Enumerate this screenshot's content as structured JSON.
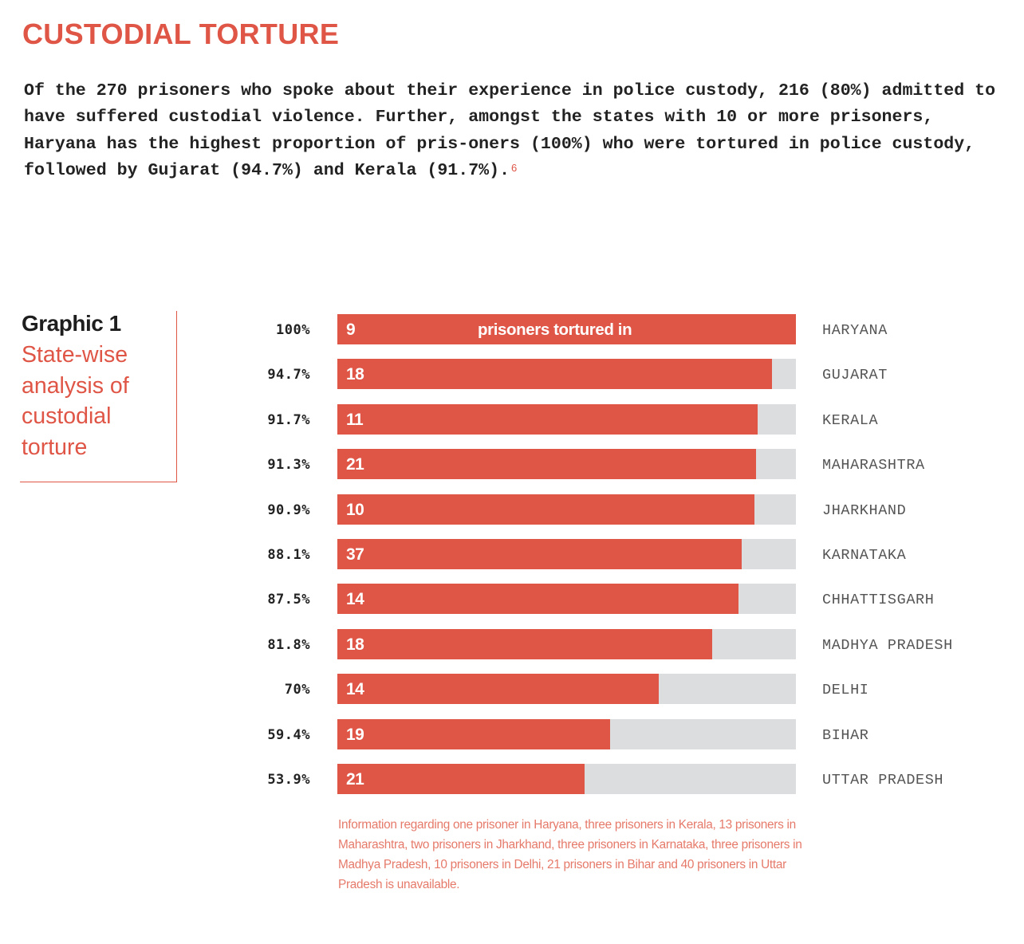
{
  "page": {
    "title": "CUSTODIAL TORTURE",
    "intro": "Of the 270 prisoners who spoke about their experience in police custody, 216 (80%) admitted to have suffered custodial violence. Further, amongst the states with 10 or more prisoners, Haryana has the highest proportion of pris-oners (100%) who were tortured in police custody, followed by Gujarat (94.7%) and Kerala (91.7%).",
    "footnote_ref": "6"
  },
  "graphic": {
    "number": "Graphic 1",
    "subtitle": "State-wise analysis of custodial torture"
  },
  "colors": {
    "accent": "#df5546",
    "track": "#dcdddf",
    "footnote_text": "#e67a6a"
  },
  "chart_data": {
    "type": "bar",
    "orientation": "horizontal",
    "title": "State-wise analysis of custodial torture",
    "inline_label": "prisoners tortured in",
    "xlim": [
      0,
      100
    ],
    "unit": "%",
    "categories": [
      "HARYANA",
      "GUJARAT",
      "KERALA",
      "MAHARASHTRA",
      "JHARKHAND",
      "KARNATAKA",
      "CHHATTISGARH",
      "MADHYA PRADESH",
      "DELHI",
      "BIHAR",
      "UTTAR PRADESH"
    ],
    "percent_labels": [
      "100%",
      "94.7%",
      "91.7%",
      "91.3%",
      "90.9%",
      "88.1%",
      "87.5%",
      "81.8%",
      "70%",
      "59.4%",
      "53.9%"
    ],
    "values": [
      100,
      94.7,
      91.7,
      91.3,
      90.9,
      88.1,
      87.5,
      81.8,
      70,
      59.4,
      53.9
    ],
    "counts": [
      9,
      18,
      11,
      21,
      10,
      37,
      14,
      18,
      14,
      19,
      21
    ],
    "footnote": "Information regarding one prisoner in Haryana, three prisoners in Kerala, 13 prisoners in Maharashtra, two prisoners in Jharkhand, three prisoners in Karnataka, three prisoners in Madhya Pradesh, 10 prisoners in Delhi, 21 prisoners in Bihar and 40 prisoners in Uttar Pradesh is unavailable.",
    "grid": false,
    "legend": "none"
  }
}
